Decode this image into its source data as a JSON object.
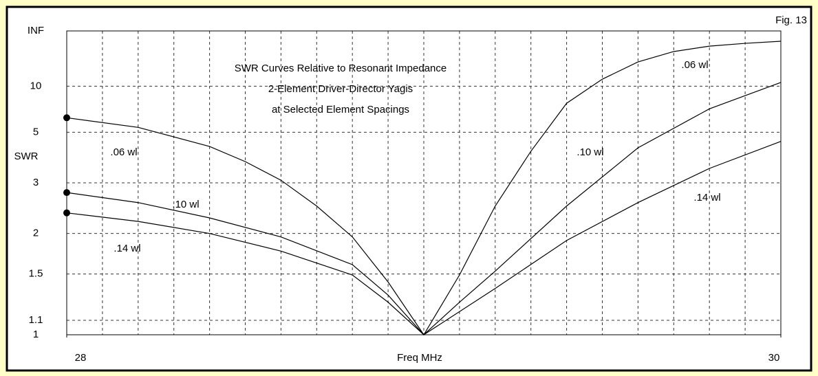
{
  "chart_data": {
    "type": "line",
    "title": [
      "SWR Curves Relative to Resonant Impedance",
      "2-Element Driver-Director Yagis",
      "at Selected Element Spacings"
    ],
    "figure_label": "Fig. 13",
    "xlabel": "Freq MHz",
    "ylabel": "SWR",
    "yscale": "reflection",
    "xlim": [
      28,
      30
    ],
    "xticks": [
      28,
      30
    ],
    "xgrid": [
      28.1,
      28.2,
      28.3,
      28.4,
      28.5,
      28.6,
      28.7,
      28.8,
      28.9,
      29.0,
      29.1,
      29.2,
      29.3,
      29.4,
      29.5,
      29.6,
      29.7,
      29.8,
      29.9
    ],
    "ylim": [
      1,
      "INF"
    ],
    "yticks": [
      1,
      1.1,
      1.5,
      2,
      3,
      5,
      10,
      "INF"
    ],
    "grid": true,
    "series": [
      {
        "name": ".06 wl",
        "color": "#000000",
        "x": [
          28.0,
          28.2,
          28.4,
          28.5,
          28.6,
          28.7,
          28.8,
          28.9,
          29.0,
          29.1,
          29.2,
          29.3,
          29.4,
          29.5,
          29.6,
          29.7,
          29.8,
          29.9,
          30.0
        ],
        "values": [
          6.0,
          5.3,
          4.26,
          3.65,
          3.07,
          2.47,
          1.95,
          1.42,
          1.0,
          1.49,
          2.47,
          4.05,
          7.4,
          11.6,
          18.6,
          28.5,
          39,
          48,
          58
        ]
      },
      {
        "name": ".10 wl",
        "color": "#000000",
        "x": [
          28.0,
          28.2,
          28.4,
          28.6,
          28.8,
          28.9,
          29.0,
          29.1,
          29.2,
          29.4,
          29.6,
          29.8,
          30.0
        ],
        "values": [
          2.76,
          2.54,
          2.25,
          1.95,
          1.6,
          1.3,
          1.0,
          1.24,
          1.53,
          2.47,
          4.2,
          6.8,
          10.8
        ]
      },
      {
        "name": ".14 wl",
        "color": "#000000",
        "x": [
          28.0,
          28.2,
          28.4,
          28.6,
          28.8,
          28.9,
          29.0,
          29.2,
          29.4,
          29.6,
          29.8,
          30.0
        ],
        "values": [
          2.34,
          2.19,
          2.0,
          1.76,
          1.49,
          1.24,
          1.0,
          1.36,
          1.9,
          2.54,
          3.42,
          4.5
        ]
      }
    ]
  }
}
